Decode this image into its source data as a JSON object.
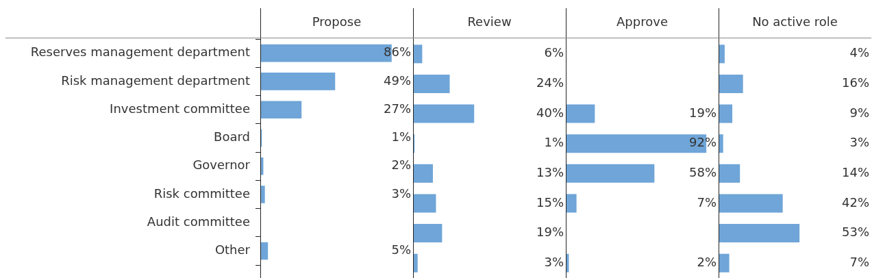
{
  "chart_data": [
    {
      "type": "bar",
      "orientation": "horizontal",
      "title": "Propose",
      "categories": [
        "Reserves management department",
        "Risk management department",
        "Investment committee",
        "Board",
        "Governor",
        "Risk committee",
        "Audit committee",
        "Other"
      ],
      "values": [
        86,
        49,
        27,
        1,
        2,
        3,
        null,
        5
      ],
      "value_labels": [
        "86%",
        "49%",
        "27%",
        "1%",
        "2%",
        "3%",
        null,
        "5%"
      ],
      "color": "#6fa5d8",
      "xlim": [
        0,
        100
      ],
      "tick_labels": "y"
    },
    {
      "type": "bar",
      "orientation": "horizontal",
      "title": "Review",
      "categories": [
        null,
        null,
        null,
        null,
        null,
        null,
        null,
        null
      ],
      "values": [
        6,
        24,
        40,
        1,
        13,
        15,
        19,
        3
      ],
      "value_labels": [
        "6%",
        "24%",
        "40%",
        "1%",
        "13%",
        "15%",
        "19%",
        "3%"
      ],
      "color": "#6fa5d8",
      "xlim": [
        0,
        100
      ],
      "tick_labels": false
    },
    {
      "type": "bar",
      "orientation": "horizontal",
      "title": "Approve",
      "categories": [
        null,
        null,
        null,
        null,
        null,
        null,
        null,
        null
      ],
      "values": [
        null,
        null,
        19,
        92,
        58,
        7,
        null,
        2
      ],
      "value_labels": [
        null,
        null,
        "19%",
        "92%",
        "58%",
        "7%",
        null,
        "2%"
      ],
      "color": "#6fa5d8",
      "xlim": [
        0,
        100
      ],
      "tick_labels": false
    },
    {
      "type": "bar",
      "orientation": "horizontal",
      "title": "No active role",
      "categories": [
        null,
        null,
        null,
        null,
        null,
        null,
        null,
        null
      ],
      "values": [
        4,
        16,
        9,
        3,
        14,
        42,
        53,
        7
      ],
      "value_labels": [
        "4%",
        "16%",
        "9%",
        "3%",
        "14%",
        "42%",
        "53%",
        "7%"
      ],
      "color": "#6fa5d8",
      "xlim": [
        0,
        100
      ],
      "tick_labels": false
    }
  ]
}
